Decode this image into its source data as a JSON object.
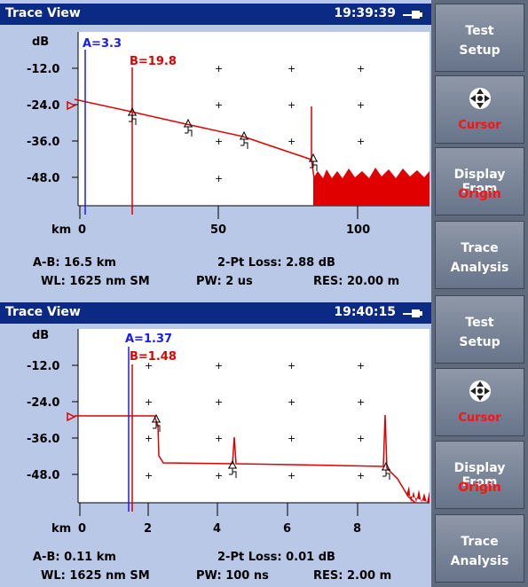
{
  "screens": [
    {
      "title": "Trace View",
      "time": "19:39:39",
      "y_unit": "dB",
      "y_ticks": [
        "-12.0",
        "-24.0",
        "-36.0",
        "-48.0"
      ],
      "x_unit": "km",
      "x_ticks": [
        "0",
        "50",
        "100"
      ],
      "marker_a": "A=3.3",
      "marker_b": "B=19.8",
      "status": {
        "ab": "A-B: 16.5 km",
        "loss": "2-Pt Loss: 2.88 dB",
        "wl": "WL: 1625 nm SM",
        "pw": "PW: 2 us",
        "res": "RES: 20.00 m"
      },
      "chart_data": {
        "type": "line",
        "ylabel": "dB",
        "xlabel": "km",
        "xlim": [
          0,
          120
        ],
        "ylim": [
          -60,
          0
        ],
        "grid": true,
        "x": [
          0,
          20,
          40,
          60,
          83
        ],
        "y": [
          -23,
          -26.5,
          -30,
          -33,
          -39
        ],
        "markers": [
          {
            "name": "A",
            "x": 3.3
          },
          {
            "name": "B",
            "x": 19.8
          }
        ]
      }
    },
    {
      "title": "Trace View",
      "time": "19:40:15",
      "y_unit": "dB",
      "y_ticks": [
        "-12.0",
        "-24.0",
        "-36.0",
        "-48.0"
      ],
      "x_unit": "km",
      "x_ticks": [
        "0",
        "2",
        "4",
        "6",
        "8"
      ],
      "marker_a": "A=1.37",
      "marker_b": "B=1.48",
      "status": {
        "ab": "A-B: 0.11 km",
        "loss": "2-Pt Loss: 0.01 dB",
        "wl": "WL: 1625 nm SM",
        "pw": "PW: 100 ns",
        "res": "RES: 2.00 m"
      },
      "chart_data": {
        "type": "line",
        "ylabel": "dB",
        "xlabel": "km",
        "xlim": [
          0,
          10
        ],
        "ylim": [
          -60,
          0
        ],
        "grid": true,
        "x": [
          0,
          2.2,
          2.35,
          4.5,
          8.8
        ],
        "y": [
          -31,
          -31,
          -42,
          -43,
          -44.5
        ],
        "markers": [
          {
            "name": "A",
            "x": 1.37
          },
          {
            "name": "B",
            "x": 1.48
          }
        ]
      }
    }
  ],
  "softkeys": {
    "test_l1": "Test",
    "test_l2": "Setup",
    "cursor": "Cursor",
    "display_l1": "Display From",
    "display_l2": "Origin",
    "trace_l1": "Trace",
    "trace_l2": "Analysis"
  },
  "colors": {
    "title_bar": "#0b2a84",
    "trace": "#e00000",
    "marker_a": "#1a1aff",
    "marker_b": "#e00000",
    "softkey_highlight": "#ff1010"
  },
  "icons": [
    "battery-icon",
    "dpad-icon",
    "event-marker-icon"
  ]
}
